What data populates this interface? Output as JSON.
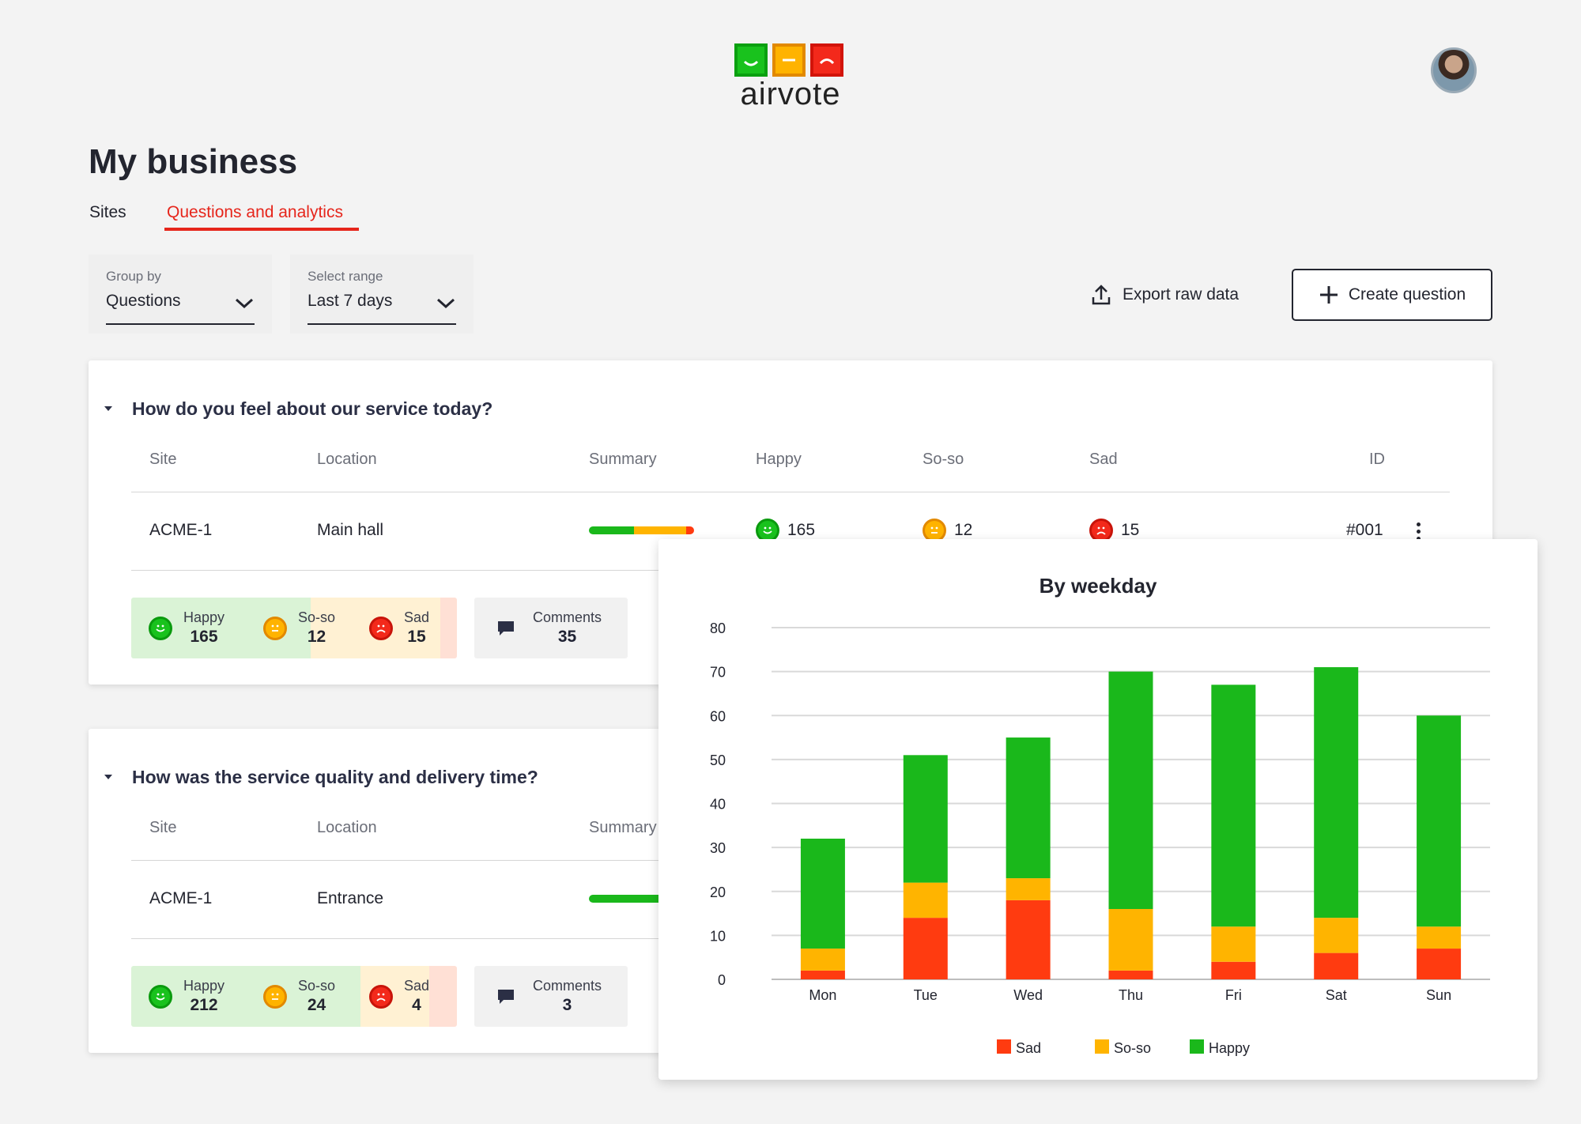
{
  "header": {
    "logo_text": "airvote",
    "avatar": "user-avatar"
  },
  "page": {
    "title": "My business",
    "tabs": [
      {
        "label": "Sites",
        "active": false
      },
      {
        "label": "Questions and analytics",
        "active": true
      }
    ]
  },
  "filters": {
    "group_by": {
      "label": "Group by",
      "value": "Questions"
    },
    "range": {
      "label": "Select range",
      "value": "Last 7 days"
    }
  },
  "actions": {
    "export_label": "Export raw data",
    "create_label": "Create question"
  },
  "table_headers": {
    "site": "Site",
    "location": "Location",
    "summary": "Summary",
    "happy": "Happy",
    "soso": "So-so",
    "sad": "Sad",
    "id": "ID"
  },
  "questions": [
    {
      "title": "How do you feel about our service today?",
      "row": {
        "site": "ACME-1",
        "location": "Main hall",
        "happy": "165",
        "soso": "12",
        "sad": "15",
        "id": "#001"
      },
      "stats": {
        "happy_label": "Happy",
        "happy": "165",
        "soso_label": "So-so",
        "soso": "12",
        "sad_label": "Sad",
        "sad": "15",
        "comments_label": "Comments",
        "comments": "35"
      }
    },
    {
      "title": "How was the service quality and delivery time?",
      "row": {
        "site": "ACME-1",
        "location": "Entrance"
      },
      "stats": {
        "happy_label": "Happy",
        "happy": "212",
        "soso_label": "So-so",
        "soso": "24",
        "sad_label": "Sad",
        "sad": "4",
        "comments_label": "Comments",
        "comments": "3"
      }
    }
  ],
  "colors": {
    "happy": "#1ab81b",
    "soso": "#ffb400",
    "sad": "#ff3b10",
    "accent": "#e6251b"
  },
  "chart_data": {
    "type": "bar",
    "stacked": true,
    "title": "By weekday",
    "categories": [
      "Mon",
      "Tue",
      "Wed",
      "Thu",
      "Fri",
      "Sat",
      "Sun"
    ],
    "series": [
      {
        "name": "Sad",
        "color": "#ff3b10",
        "values": [
          2,
          14,
          18,
          2,
          4,
          6,
          7
        ]
      },
      {
        "name": "So-so",
        "color": "#ffb400",
        "values": [
          5,
          8,
          5,
          14,
          8,
          8,
          5
        ]
      },
      {
        "name": "Happy",
        "color": "#1ab81b",
        "values": [
          25,
          29,
          32,
          54,
          55,
          57,
          48
        ]
      }
    ],
    "ylim": [
      0,
      80
    ],
    "yticks": [
      "0",
      "10",
      "20",
      "30",
      "40",
      "50",
      "60",
      "70",
      "80"
    ],
    "grid": true,
    "legend": "bottom"
  }
}
